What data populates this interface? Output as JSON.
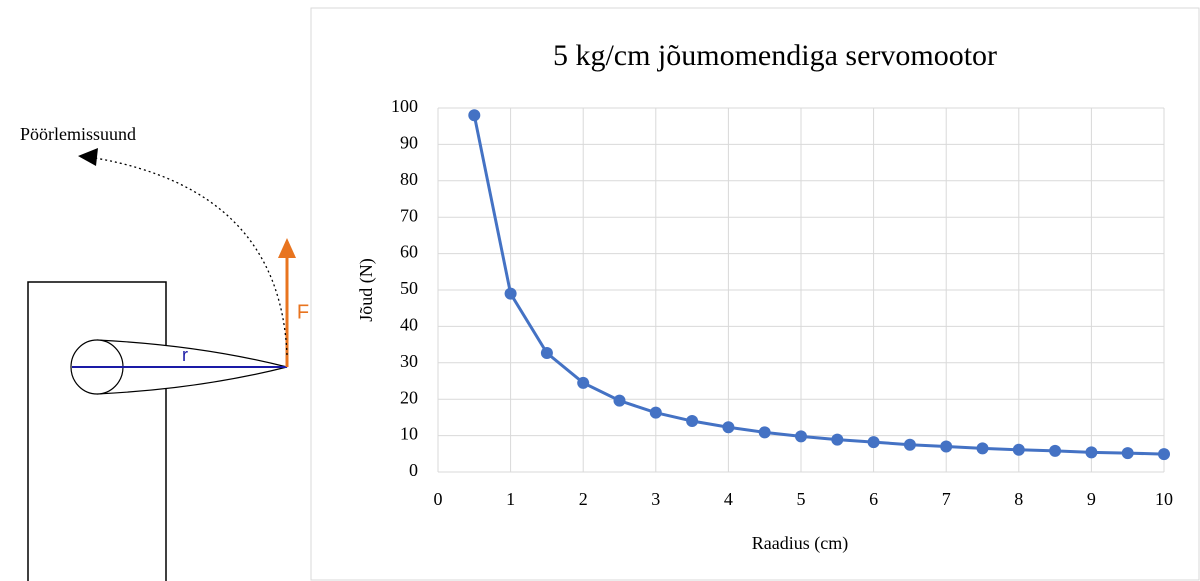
{
  "diagram": {
    "rotation_label": "Pöörlemissuund",
    "force_label": "F",
    "radius_label": "r"
  },
  "chart_data": {
    "type": "line",
    "title": "5 kg/cm jõumomendiga servomootor",
    "x_label": "Raadius (cm)",
    "y_label": "Jõud (N)",
    "x": [
      0.5,
      1,
      1.5,
      2,
      2.5,
      3,
      3.5,
      4,
      4.5,
      5,
      5.5,
      6,
      6.5,
      7,
      7.5,
      8,
      8.5,
      9,
      9.5,
      10
    ],
    "series": [
      {
        "name": "Jõud (N)",
        "color": "#4472c4",
        "values": [
          98,
          49,
          32.7,
          24.5,
          19.6,
          16.3,
          14,
          12.3,
          10.9,
          9.8,
          8.9,
          8.2,
          7.5,
          7,
          6.5,
          6.1,
          5.8,
          5.4,
          5.2,
          4.9
        ]
      }
    ],
    "xlim": [
      0,
      10
    ],
    "xticks": [
      0,
      1,
      2,
      3,
      4,
      5,
      6,
      7,
      8,
      9,
      10
    ],
    "ylim": [
      0,
      100
    ],
    "yticks": [
      0,
      10,
      20,
      30,
      40,
      50,
      60,
      70,
      80,
      90,
      100
    ],
    "grid": true
  }
}
